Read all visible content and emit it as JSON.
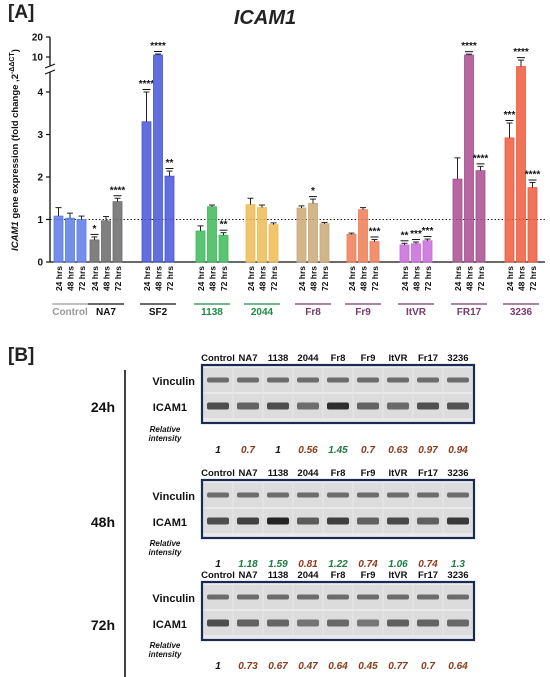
{
  "panel_a": {
    "label": "[A]",
    "chart_data": {
      "type": "bar",
      "title": "ICAM1",
      "ylabel": "ICAM1 gene expression (fold change 2^-ΔΔCT)",
      "ylabel_gene": "ICAM1",
      "ylabel_rest": " gene expression (fold change ,2",
      "ylabel_exp": "-ΔΔCT",
      "ylabel_close": ")",
      "ylim": [
        0,
        5
      ],
      "yticks": [
        "0",
        "1",
        "2",
        "3",
        "4"
      ],
      "upper_ticks": [
        "10",
        "20"
      ],
      "axis_break": true,
      "reference_line": 1,
      "timepoints": [
        "24 hrs",
        "48 hrs",
        "72 hrs"
      ],
      "groups": [
        {
          "name": "Control",
          "color": "#5b7be6",
          "name_color": "#9a9a9a",
          "values": [
            1.08,
            1.03,
            1.0
          ],
          "errors": [
            0.2,
            0.12,
            0.08
          ],
          "sig": [
            "",
            "",
            ""
          ]
        },
        {
          "name": "NA7",
          "color": "#6a6a6a",
          "name_color": "#111111",
          "values": [
            0.52,
            0.97,
            1.42
          ],
          "errors": [
            0.07,
            0.1,
            0.08
          ],
          "sig": [
            "*",
            "",
            "****"
          ]
        },
        {
          "name": "SF2",
          "color": "#4656d6",
          "name_color": "#111111",
          "values": [
            3.3,
            11.0,
            2.02
          ],
          "errors": [
            0.7,
            0.5,
            0.12
          ],
          "sig": [
            "****",
            "****",
            "**"
          ]
        },
        {
          "name": "1138",
          "color": "#3dba5a",
          "name_color": "#1f8a45",
          "values": [
            0.73,
            1.3,
            0.63
          ],
          "errors": [
            0.12,
            0.04,
            0.06
          ],
          "sig": [
            "",
            "",
            "**"
          ]
        },
        {
          "name": "2044",
          "color": "#efbb55",
          "name_color": "#1f8a45",
          "values": [
            1.35,
            1.28,
            0.88
          ],
          "errors": [
            0.15,
            0.06,
            0.04
          ],
          "sig": [
            "",
            "",
            ""
          ]
        },
        {
          "name": "Fr8",
          "color": "#c9a877",
          "name_color": "#7a3a6e",
          "values": [
            1.27,
            1.38,
            0.9
          ],
          "errors": [
            0.05,
            0.1,
            0.03
          ],
          "sig": [
            "",
            "*",
            ""
          ]
        },
        {
          "name": "Fr9",
          "color": "#ef7d55",
          "name_color": "#7a3a6e",
          "values": [
            0.65,
            1.23,
            0.48
          ],
          "errors": [
            0.03,
            0.05,
            0.05
          ],
          "sig": [
            "",
            "",
            "***"
          ]
        },
        {
          "name": "ItVR",
          "color": "#c86ad8",
          "name_color": "#7a3a6e",
          "values": [
            0.4,
            0.43,
            0.5
          ],
          "errors": [
            0.04,
            0.04,
            0.04
          ],
          "sig": [
            "**",
            "***",
            "***"
          ]
        },
        {
          "name": "FR17",
          "color": "#a94c90",
          "name_color": "#7a3a6e",
          "values": [
            1.95,
            11.0,
            2.15
          ],
          "errors": [
            0.5,
            0.4,
            0.1
          ],
          "sig": [
            "",
            "****",
            "****"
          ]
        },
        {
          "name": "3236",
          "color": "#ef5a3c",
          "name_color": "#7a3a6e",
          "values": [
            2.92,
            4.6,
            1.75
          ],
          "errors": [
            0.35,
            0.15,
            0.12
          ],
          "sig": [
            "***",
            "****",
            "****"
          ]
        }
      ]
    }
  },
  "panel_b": {
    "label": "[B]",
    "lanes": [
      "Control",
      "NA7",
      "1138",
      "2044",
      "Fr8",
      "Fr9",
      "ItVR",
      "Fr17",
      "3236"
    ],
    "vinculin_label": "Vinculin",
    "icam1_label": "ICAM1",
    "relative_label_1": "Relative",
    "relative_label_2": "intensity",
    "color_up": "#1e7a40",
    "color_down": "#8b3a1a",
    "color_neutral": "#111111",
    "blots": [
      {
        "timepoint": "24h",
        "values": [
          "1",
          "0.7",
          "1",
          "0.56",
          "1.45",
          "0.7",
          "0.63",
          "0.97",
          "0.94"
        ],
        "colors": [
          "n",
          "d",
          "n",
          "d",
          "u",
          "d",
          "d",
          "d",
          "d"
        ]
      },
      {
        "timepoint": "48h",
        "values": [
          "1",
          "1.18",
          "1.59",
          "0.81",
          "1.22",
          "0.74",
          "1.06",
          "0.74",
          "1.3"
        ],
        "colors": [
          "n",
          "u",
          "u",
          "d",
          "u",
          "d",
          "u",
          "d",
          "u"
        ]
      },
      {
        "timepoint": "72h",
        "values": [
          "1",
          "0.73",
          "0.67",
          "0.47",
          "0.64",
          "0.45",
          "0.77",
          "0.7",
          "0.64"
        ],
        "colors": [
          "n",
          "d",
          "d",
          "d",
          "d",
          "d",
          "d",
          "d",
          "d"
        ]
      }
    ]
  }
}
